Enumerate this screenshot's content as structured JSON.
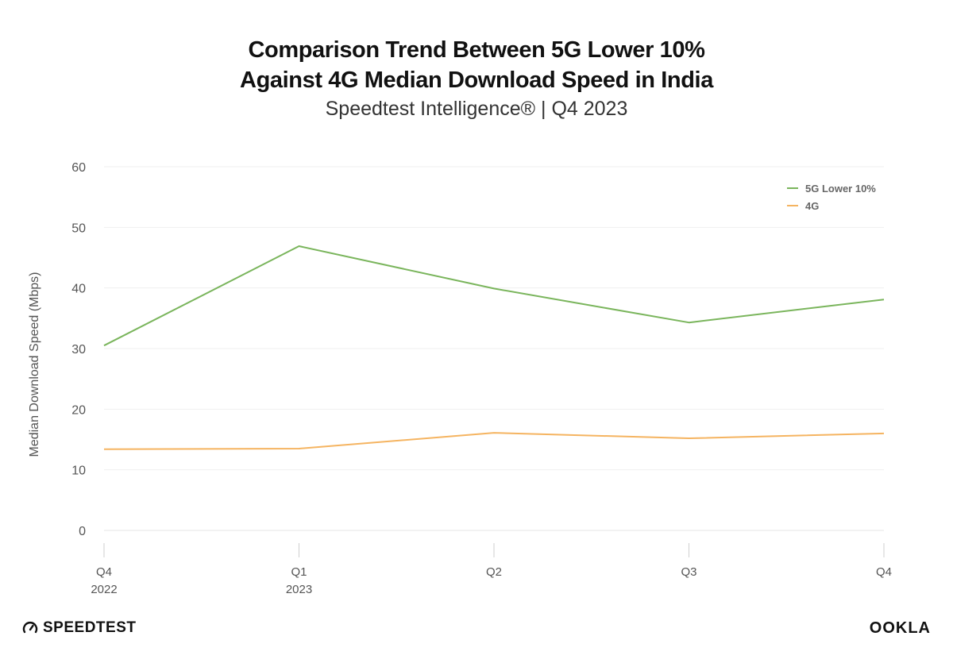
{
  "header": {
    "title_line1": "Comparison Trend Between 5G Lower 10%",
    "title_line2": "Against 4G Median Download Speed in India",
    "subtitle": "Speedtest Intelligence® | Q4 2023"
  },
  "chart_data": {
    "type": "line",
    "title": "Comparison Trend Between 5G Lower 10% Against 4G Median Download Speed in India",
    "subtitle": "Speedtest Intelligence® | Q4 2023",
    "xlabel": "",
    "ylabel": "Median Download Speed (Mbps)",
    "categories": [
      [
        "Q4",
        "2022"
      ],
      [
        "Q1",
        "2023"
      ],
      [
        "Q2",
        ""
      ],
      [
        "Q3",
        ""
      ],
      [
        "Q4",
        ""
      ]
    ],
    "ylim": [
      0,
      60
    ],
    "yticks": [
      0,
      10,
      20,
      30,
      40,
      50,
      60
    ],
    "grid": true,
    "legend_position": "top-right",
    "series": [
      {
        "name": "5G Lower 10%",
        "color": "#7ab55c",
        "values": [
          30.5,
          46.9,
          39.9,
          34.3,
          38.1
        ]
      },
      {
        "name": "4G",
        "color": "#f5b461",
        "values": [
          13.4,
          13.5,
          16.1,
          15.2,
          16.0
        ]
      }
    ]
  },
  "branding": {
    "left_logo_text": "SPEEDTEST",
    "left_logo_icon": "speedometer-icon",
    "right_logo_text": "OOKLA"
  }
}
